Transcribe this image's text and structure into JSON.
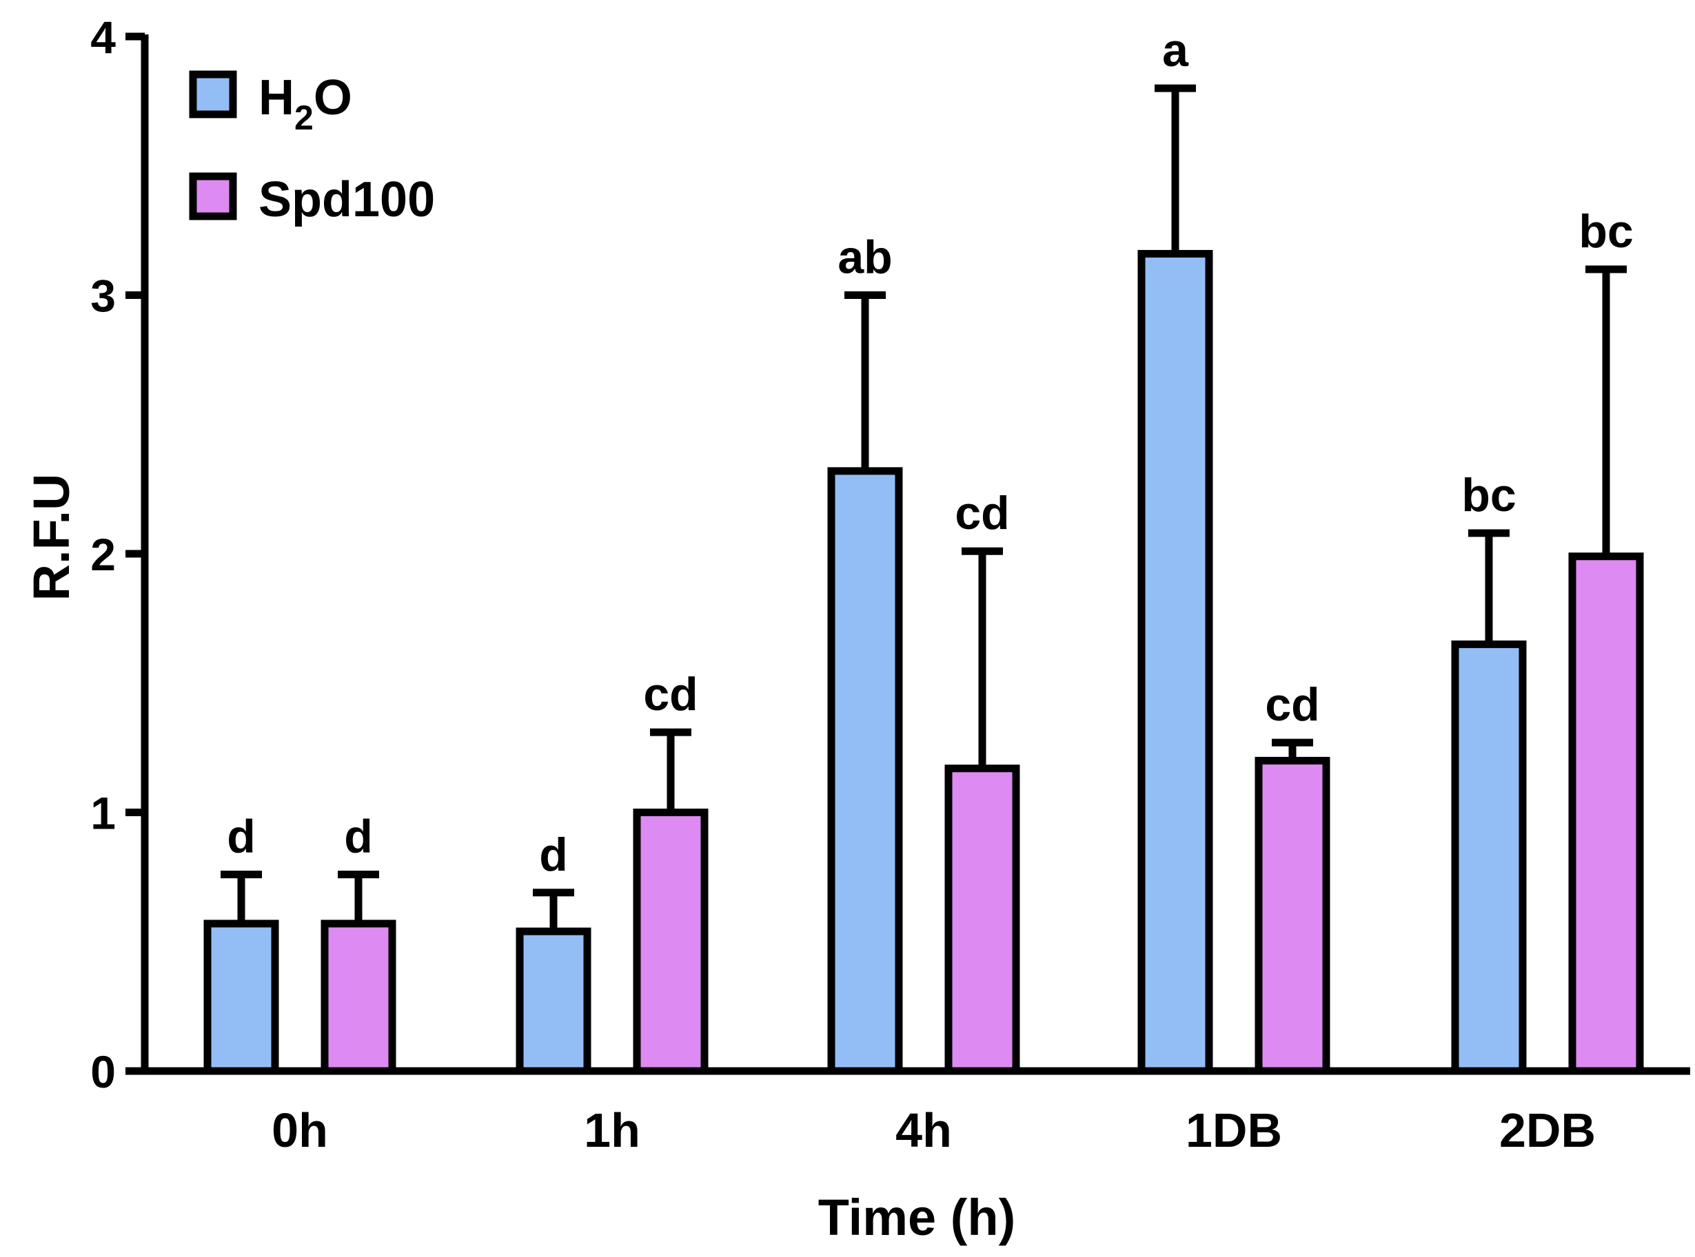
{
  "chart_data": {
    "type": "bar",
    "title": "",
    "xlabel": "Time (h)",
    "ylabel": "R.F.U",
    "ylim": [
      0,
      4
    ],
    "yticks": [
      "0",
      "1",
      "2",
      "3",
      "4"
    ],
    "grid": false,
    "legend_position": "top-left",
    "categories": [
      "0h",
      "1h",
      "4h",
      "1DB",
      "2DB"
    ],
    "series": [
      {
        "name": "H2O",
        "legend": {
          "main": "H",
          "sub": "2",
          "tail": "O"
        },
        "color": "#93BDF5",
        "values": [
          0.57,
          0.54,
          2.32,
          3.16,
          1.65
        ],
        "errors": [
          0.19,
          0.15,
          0.68,
          0.64,
          0.43
        ],
        "letters": [
          "d",
          "d",
          "ab",
          "a",
          "bc"
        ]
      },
      {
        "name": "Spd100",
        "legend": {
          "main": "Spd100",
          "sub": "",
          "tail": ""
        },
        "color": "#DD8AF2",
        "values": [
          0.57,
          1.0,
          1.17,
          1.2,
          1.99
        ],
        "errors": [
          0.19,
          0.31,
          0.84,
          0.07,
          1.11
        ],
        "letters": [
          "d",
          "cd",
          "cd",
          "cd",
          "bc"
        ]
      }
    ]
  }
}
